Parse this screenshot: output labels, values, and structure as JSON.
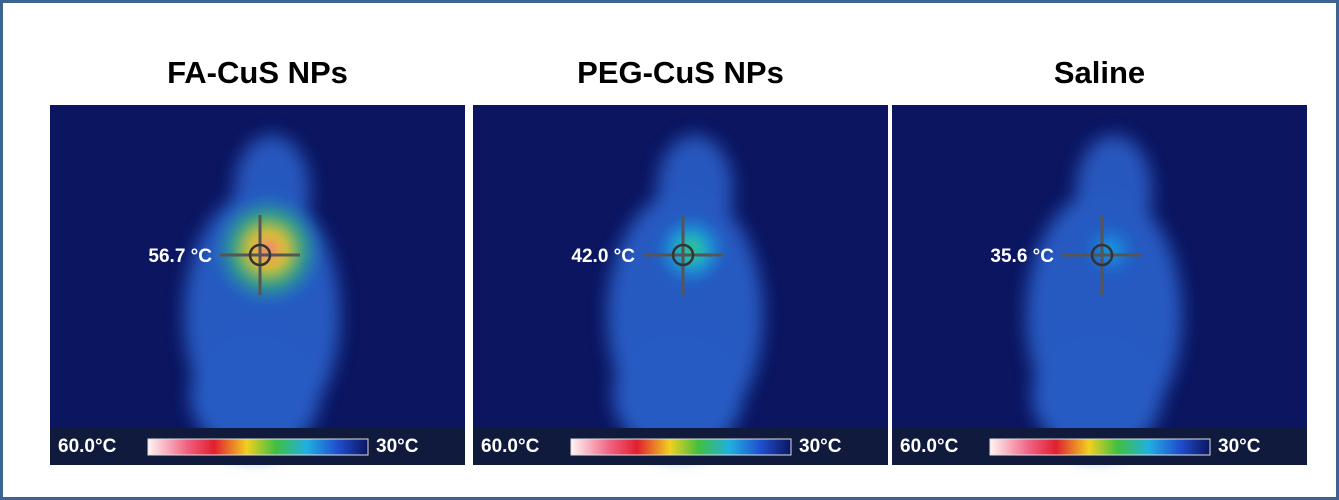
{
  "panels": [
    {
      "title": "FA-CuS NPs",
      "temperature": 56.7,
      "temperature_label": "56.7 °C",
      "scale_max": {
        "value": 60,
        "label": "60.0°C"
      },
      "scale_min": {
        "value": 30,
        "label": "30°C"
      }
    },
    {
      "title": "PEG-CuS NPs",
      "temperature": 42.0,
      "temperature_label": "42.0 °C",
      "scale_max": {
        "value": 60,
        "label": "60.0°C"
      },
      "scale_min": {
        "value": 30,
        "label": "30°C"
      }
    },
    {
      "title": "Saline",
      "temperature": 35.6,
      "temperature_label": "35.6 °C",
      "scale_max": {
        "value": 60,
        "label": "60.0°C"
      },
      "scale_min": {
        "value": 30,
        "label": "30°C"
      }
    }
  ]
}
